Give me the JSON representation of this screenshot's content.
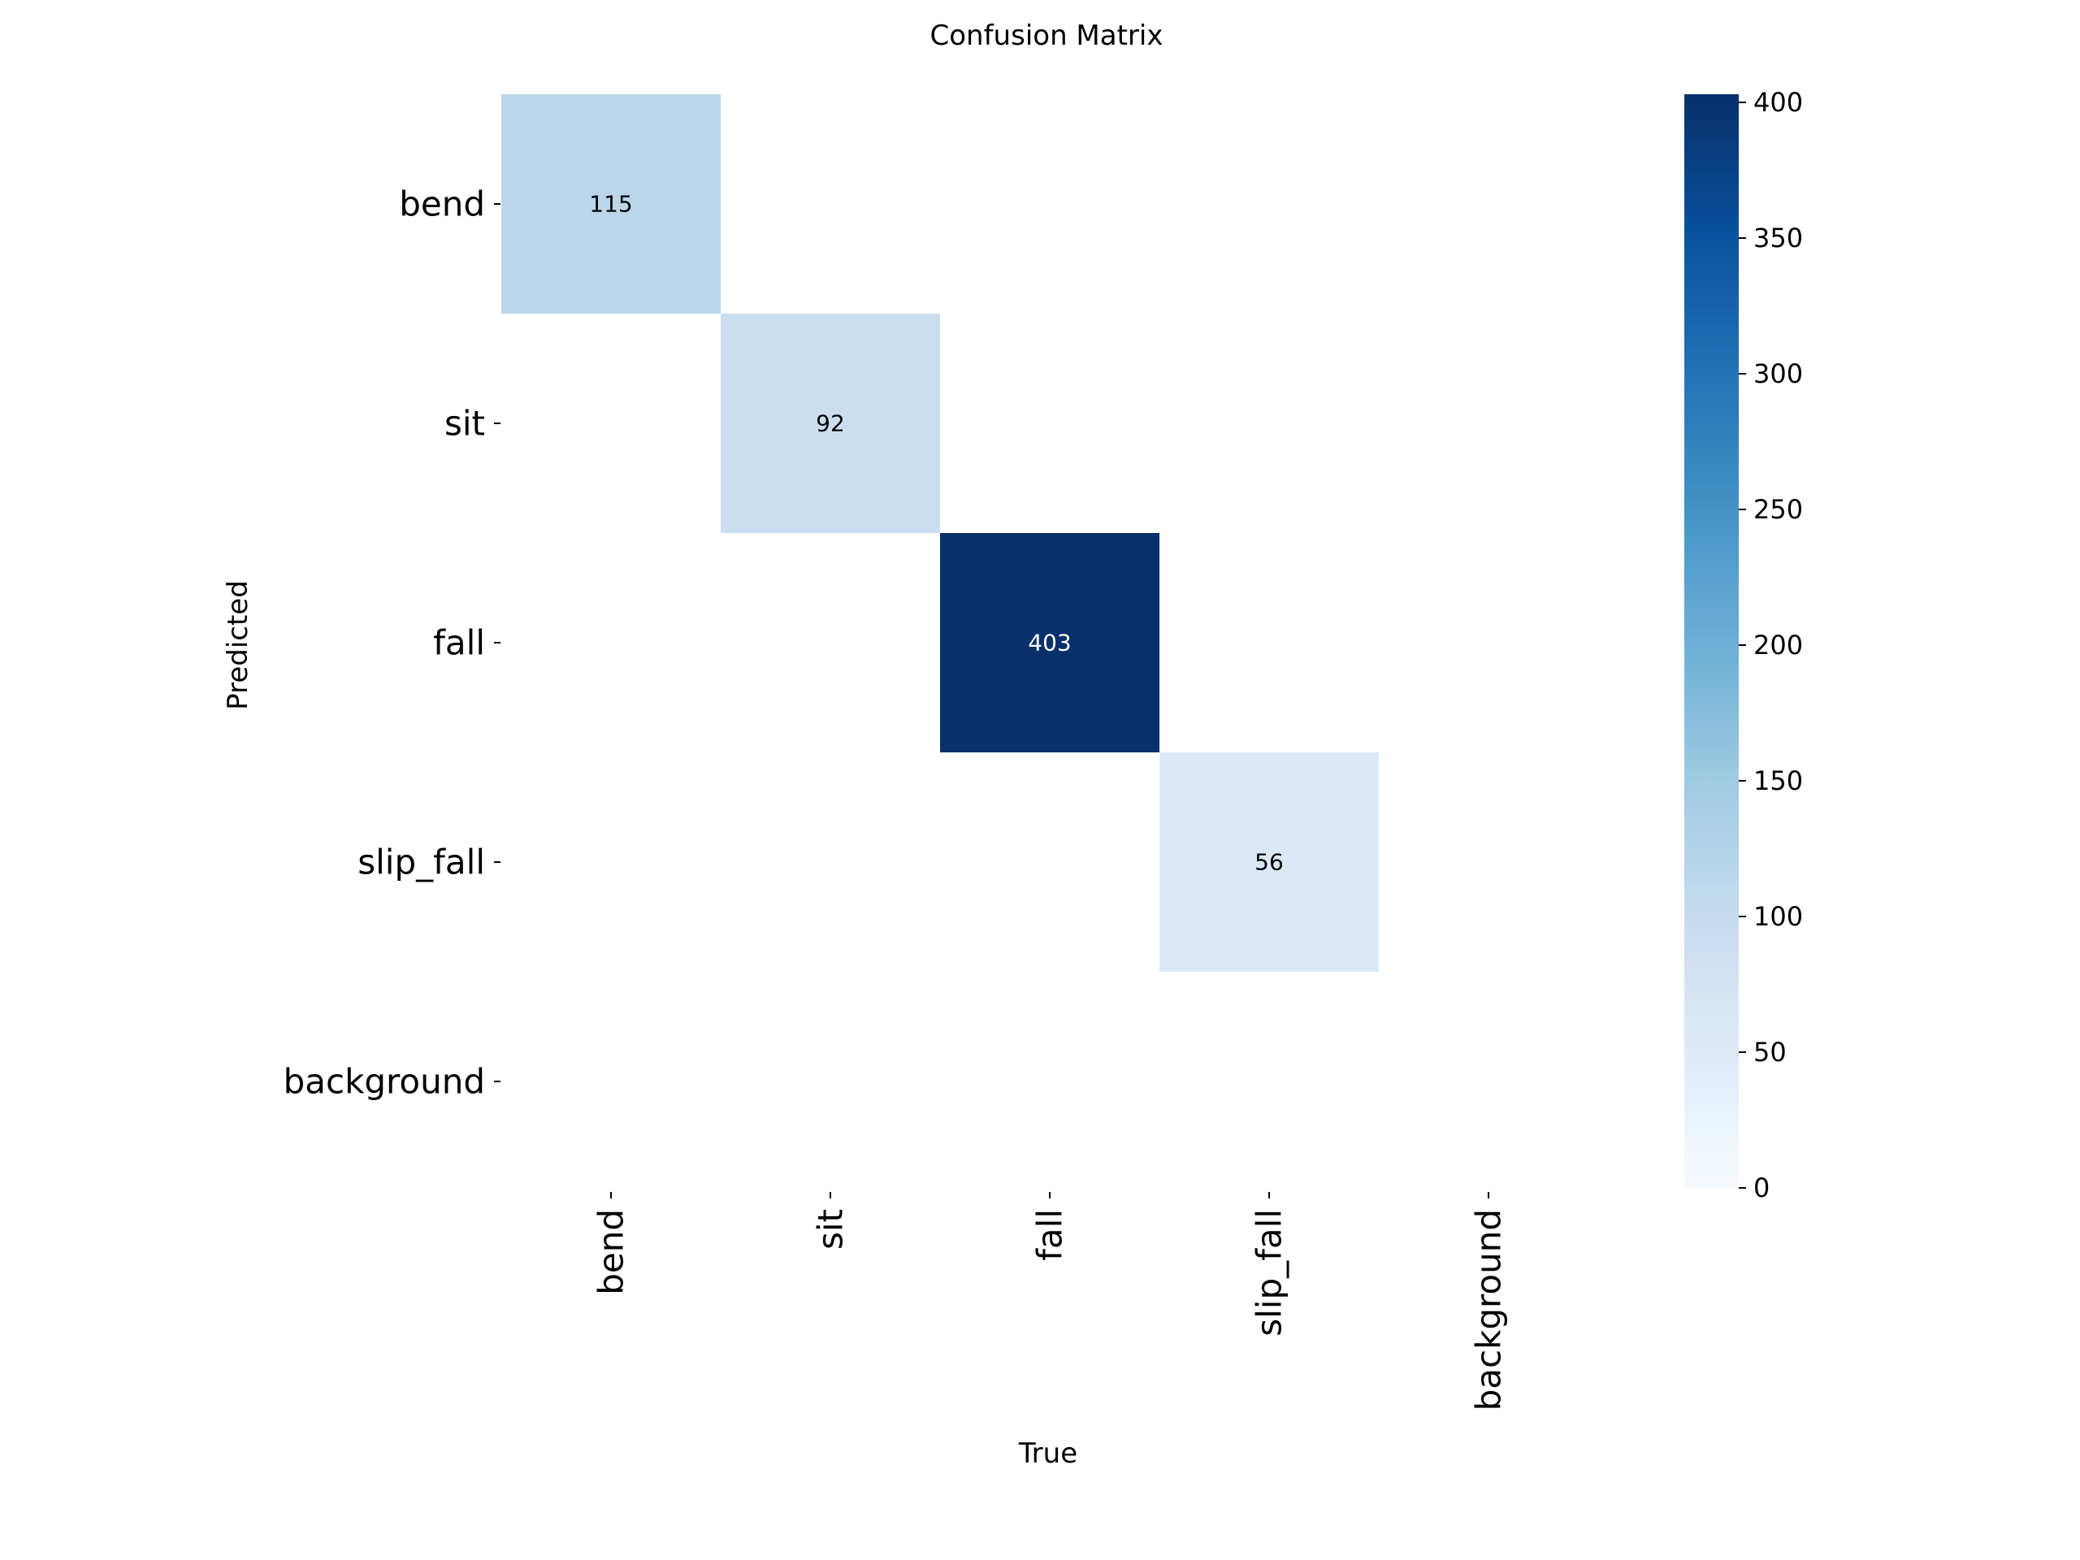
{
  "chart_data": {
    "type": "heatmap",
    "title": "Confusion Matrix",
    "xlabel": "True",
    "ylabel": "Predicted",
    "row_labels": [
      "bend",
      "sit",
      "fall",
      "slip_fall",
      "background"
    ],
    "col_labels": [
      "bend",
      "sit",
      "fall",
      "slip_fall",
      "background"
    ],
    "matrix": [
      [
        115,
        0,
        0,
        0,
        0
      ],
      [
        0,
        92,
        0,
        0,
        0
      ],
      [
        0,
        0,
        403,
        0,
        0
      ],
      [
        0,
        0,
        0,
        56,
        0
      ],
      [
        0,
        0,
        0,
        0,
        0
      ]
    ],
    "show_zero_values": false,
    "colormap": "Blues",
    "colormap_stops": [
      "#f7fbff",
      "#deebf7",
      "#c6dbef",
      "#9ecae1",
      "#6baed6",
      "#4292c6",
      "#2171b5",
      "#08519c",
      "#08306b"
    ],
    "value_range": [
      0,
      403
    ],
    "colorbar_ticks": [
      0,
      50,
      100,
      150,
      200,
      250,
      300,
      350,
      400
    ],
    "colorbar_labels": [
      "0",
      "50",
      "100",
      "150",
      "200",
      "250",
      "300",
      "350",
      "400"
    ],
    "cell_text_dark": "#000000",
    "cell_text_light": "#ffffff"
  }
}
